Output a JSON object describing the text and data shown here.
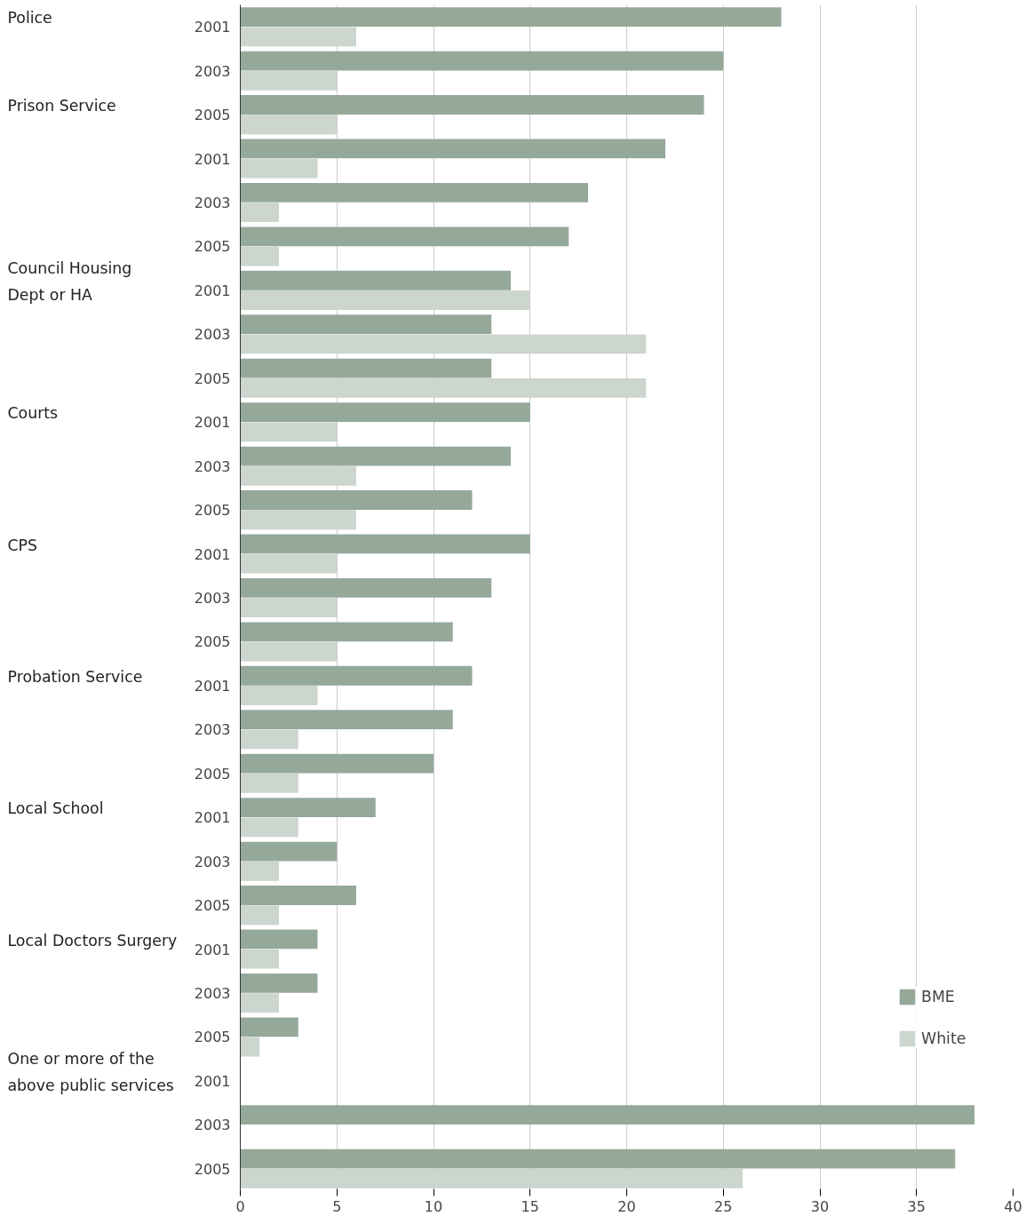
{
  "chart_data": {
    "type": "bar",
    "orientation": "horizontal",
    "categories": [
      "2001",
      "2003",
      "2005",
      "2001",
      "2003",
      "2005",
      "2001",
      "2003",
      "2005",
      "2001",
      "2003",
      "2005",
      "2001",
      "2003",
      "2005",
      "2001",
      "2003",
      "2005",
      "2001",
      "2003",
      "2005",
      "2001",
      "2003",
      "2005",
      "2001",
      "2003",
      "2005"
    ],
    "series": [
      {
        "name": "BME",
        "color": "#95a99a",
        "values": [
          28,
          25,
          24,
          22,
          18,
          17,
          14,
          13,
          13,
          15,
          14,
          12,
          15,
          13,
          11,
          12,
          11,
          10,
          7,
          5,
          6,
          4,
          4,
          3,
          null,
          38,
          37
        ]
      },
      {
        "name": "White",
        "color": "#ccd5ce",
        "values": [
          6,
          5,
          5,
          4,
          2,
          2,
          15,
          21,
          21,
          5,
          6,
          6,
          5,
          5,
          5,
          4,
          3,
          3,
          3,
          2,
          2,
          2,
          2,
          1,
          null,
          null,
          26
        ]
      }
    ],
    "annotations": [
      "Police",
      "Prison Service",
      "Council Housing\nDept or HA",
      "Courts",
      "CPS",
      "Probation Service",
      "Local School",
      "Local Doctors Surgery",
      "One or more of the\nabove public services"
    ],
    "xlim": [
      0,
      40
    ],
    "xticks": [
      0,
      5,
      10,
      15,
      20,
      25,
      30,
      35,
      40
    ],
    "grid": "x",
    "legend": "bottom right"
  }
}
